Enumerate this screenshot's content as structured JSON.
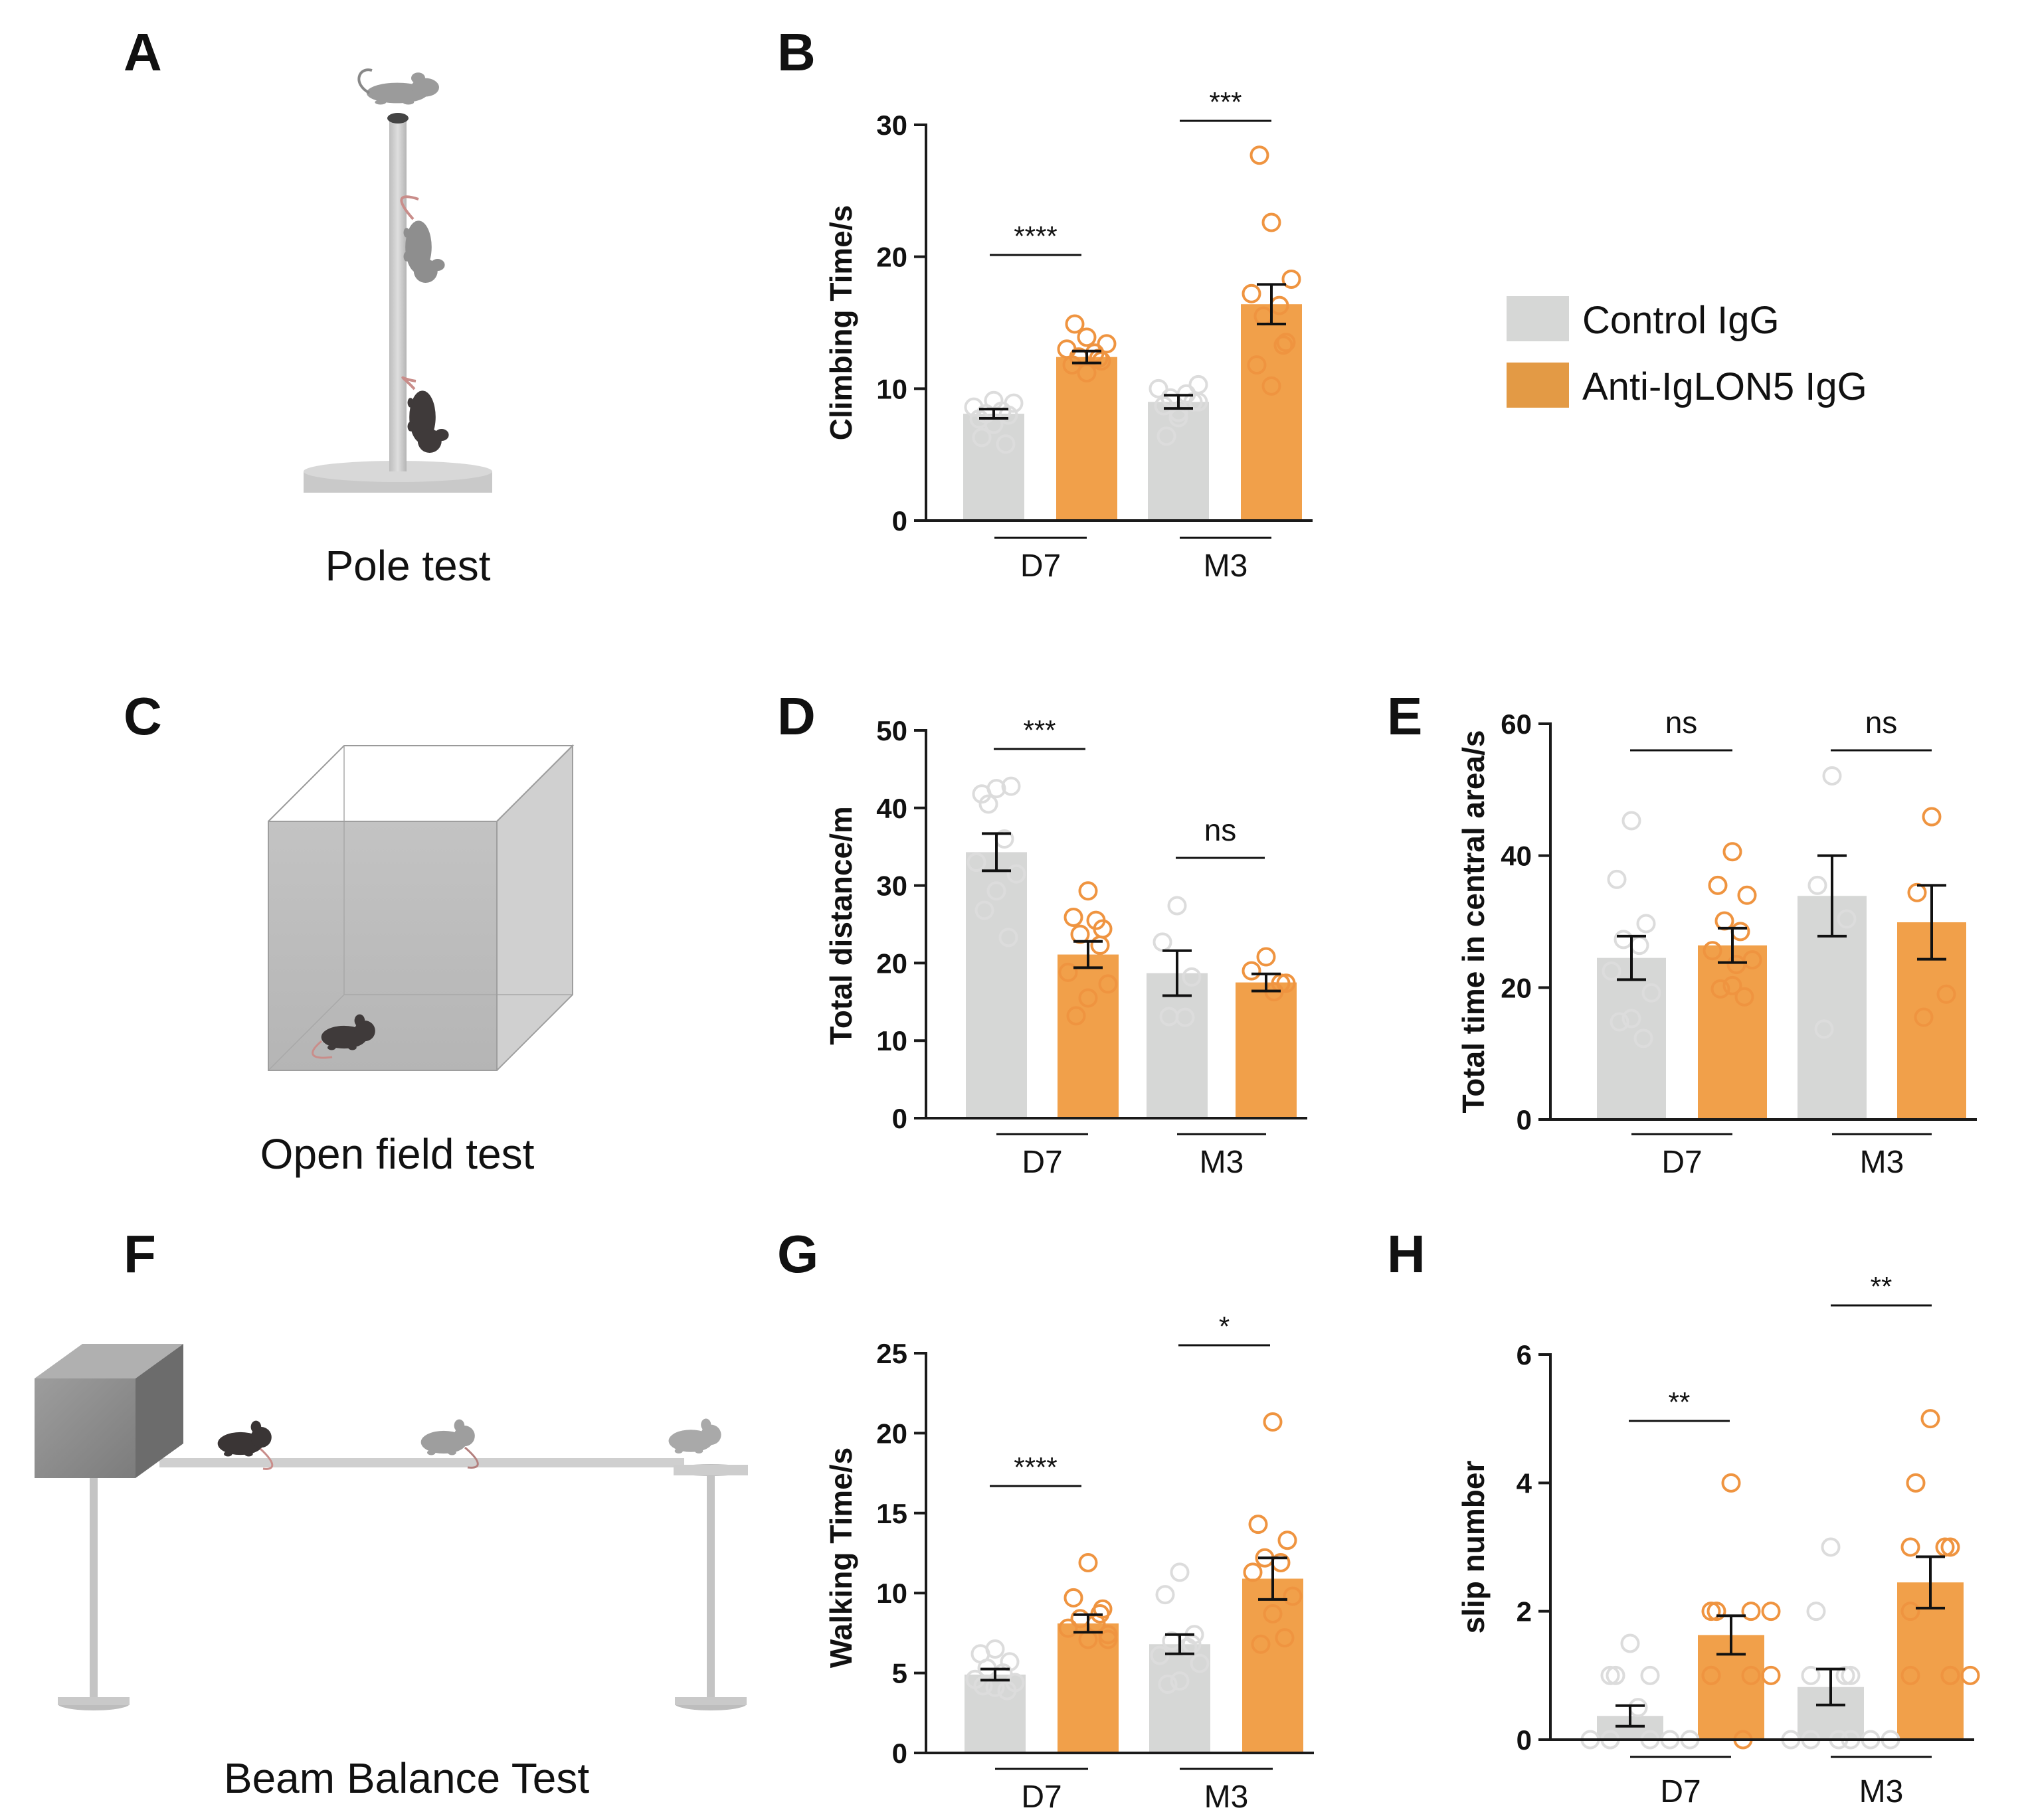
{
  "colors": {
    "control": "#d6d7d6",
    "anti": "#f1a04a",
    "control_point": "#dcdcdc",
    "anti_point": "#ef9440",
    "axis": "#1a1a1a"
  },
  "legend": {
    "control_label": "Control IgG",
    "anti_label": "Anti-IgLON5 IgG"
  },
  "panels": {
    "A": {
      "letter": "A",
      "caption": "Pole test"
    },
    "C": {
      "letter": "C",
      "caption": "Open field test"
    },
    "F": {
      "letter": "F",
      "caption": "Beam Balance Test"
    }
  },
  "chart_data": [
    {
      "id": "B",
      "letter": "B",
      "type": "bar",
      "ylabel": "Climbing Time/s",
      "ylim": [
        0,
        30
      ],
      "yticks": [
        0,
        10,
        20,
        30
      ],
      "groups": [
        "D7",
        "M3"
      ],
      "series": [
        {
          "name": "Control IgG",
          "means": [
            8.1,
            9.0
          ],
          "sems": [
            0.35,
            0.5
          ],
          "points": [
            [
              7.3,
              7.7,
              8.0,
              8.1,
              8.3,
              8.6,
              8.9,
              9.1,
              6.3,
              5.8
            ],
            [
              8.2,
              8.7,
              9.0,
              9.3,
              9.6,
              10.0,
              10.3,
              7.8,
              6.4,
              9.0
            ]
          ]
        },
        {
          "name": "Anti-IgLON5 IgG",
          "means": [
            12.4,
            16.4
          ],
          "sems": [
            0.45,
            1.5
          ],
          "points": [
            [
              11.2,
              11.8,
              12.1,
              12.4,
              12.7,
              13.0,
              13.4,
              13.9,
              14.9,
              12.3
            ],
            [
              10.2,
              11.8,
              13.5,
              15.5,
              16.3,
              17.2,
              18.3,
              22.6,
              27.7,
              13.3
            ]
          ]
        }
      ],
      "significance": [
        "****",
        "***"
      ]
    },
    {
      "id": "D",
      "letter": "D",
      "type": "bar",
      "ylabel": "Total distance/m",
      "ylim": [
        0,
        50
      ],
      "yticks": [
        0,
        10,
        20,
        30,
        40,
        50
      ],
      "groups": [
        "D7",
        "M3"
      ],
      "series": [
        {
          "name": "Control IgG",
          "means": [
            34.3,
            18.7
          ],
          "sems": [
            2.4,
            2.9
          ],
          "points": [
            [
              42.5,
              41.8,
              42.8,
              40.5,
              36.0,
              33.0,
              31.5,
              29.3,
              26.8,
              23.3
            ],
            [
              27.4,
              22.7,
              18.2,
              13.1,
              13.0
            ]
          ]
        },
        {
          "name": "Anti-IgLON5 IgG",
          "means": [
            21.1,
            17.5
          ],
          "sems": [
            1.7,
            1.1
          ],
          "points": [
            [
              29.3,
              25.9,
              24.4,
              23.7,
              25.5,
              18.8,
              17.3,
              15.5,
              13.2,
              22.3
            ],
            [
              20.8,
              19.0,
              17.4,
              17.4,
              16.3
            ]
          ]
        }
      ],
      "significance": [
        "***",
        "ns"
      ]
    },
    {
      "id": "E",
      "letter": "E",
      "type": "bar",
      "ylabel": "Total time in central area/s",
      "ylim": [
        0,
        60
      ],
      "yticks": [
        0,
        20,
        40,
        60
      ],
      "groups": [
        "D7",
        "M3"
      ],
      "series": [
        {
          "name": "Control IgG",
          "means": [
            24.5,
            33.9
          ],
          "sems": [
            3.3,
            6.1
          ],
          "points": [
            [
              45.3,
              36.4,
              29.7,
              27.3,
              26.4,
              22.5,
              19.2,
              15.3,
              14.8,
              12.3
            ],
            [
              52.1,
              35.5,
              30.4,
              13.7
            ]
          ]
        },
        {
          "name": "Anti-IgLON5 IgG",
          "means": [
            26.4,
            29.9
          ],
          "sems": [
            2.6,
            5.6
          ],
          "points": [
            [
              40.6,
              35.5,
              34.0,
              30.1,
              28.5,
              25.6,
              24.2,
              20.3,
              19.8,
              18.6,
              23.5
            ],
            [
              45.9,
              34.4,
              19.0,
              15.5
            ]
          ]
        }
      ],
      "significance": [
        "ns",
        "ns"
      ]
    },
    {
      "id": "G",
      "letter": "G",
      "type": "bar",
      "ylabel": "Walking Time/s",
      "ylim": [
        0,
        25
      ],
      "yticks": [
        0,
        5,
        10,
        15,
        20,
        25
      ],
      "groups": [
        "D7",
        "M3"
      ],
      "series": [
        {
          "name": "Control IgG",
          "means": [
            4.9,
            6.8
          ],
          "sems": [
            0.35,
            0.6
          ],
          "points": [
            [
              6.5,
              6.2,
              5.7,
              5.3,
              5.0,
              4.6,
              4.4,
              4.1,
              4.2,
              3.9
            ],
            [
              11.3,
              9.9,
              7.4,
              7.0,
              6.6,
              6.1,
              5.6,
              4.5,
              4.3,
              6.8
            ]
          ]
        },
        {
          "name": "Anti-IgLON5 IgG",
          "means": [
            8.1,
            10.9
          ],
          "sems": [
            0.55,
            1.3
          ],
          "points": [
            [
              11.9,
              9.7,
              9.0,
              8.4,
              8.1,
              7.8,
              7.4,
              7.1,
              7.1,
              8.7
            ],
            [
              20.7,
              14.3,
              13.3,
              12.2,
              11.9,
              11.3,
              9.8,
              8.7,
              6.8,
              7.2
            ]
          ]
        }
      ],
      "significance": [
        "****",
        "*"
      ]
    },
    {
      "id": "H",
      "letter": "H",
      "type": "bar",
      "ylabel": "slip number",
      "ylim": [
        0,
        6
      ],
      "yticks": [
        0,
        2,
        4,
        6
      ],
      "groups": [
        "D7",
        "M3"
      ],
      "series": [
        {
          "name": "Control IgG",
          "means": [
            0.37,
            0.82
          ],
          "sems": [
            0.16,
            0.28
          ],
          "points": [
            [
              1.5,
              1.0,
              1.0,
              1.0,
              0.5,
              0.0,
              0.0,
              0.0,
              0.0,
              0.0,
              0.0
            ],
            [
              3.0,
              2.0,
              1.0,
              1.0,
              0.0,
              0.0,
              0.0,
              0.0,
              0.0,
              0.0,
              1.0
            ]
          ]
        },
        {
          "name": "Anti-IgLON5 IgG",
          "means": [
            1.63,
            2.45
          ],
          "sems": [
            0.3,
            0.4
          ],
          "points": [
            [
              4.0,
              2.0,
              2.0,
              2.0,
              2.0,
              1.0,
              1.0,
              1.0,
              1.0,
              0.0
            ],
            [
              5.0,
              4.0,
              3.0,
              3.0,
              3.0,
              2.0,
              1.0,
              1.0,
              1.0,
              1.0
            ]
          ]
        }
      ],
      "significance": [
        "**",
        "**"
      ]
    }
  ]
}
